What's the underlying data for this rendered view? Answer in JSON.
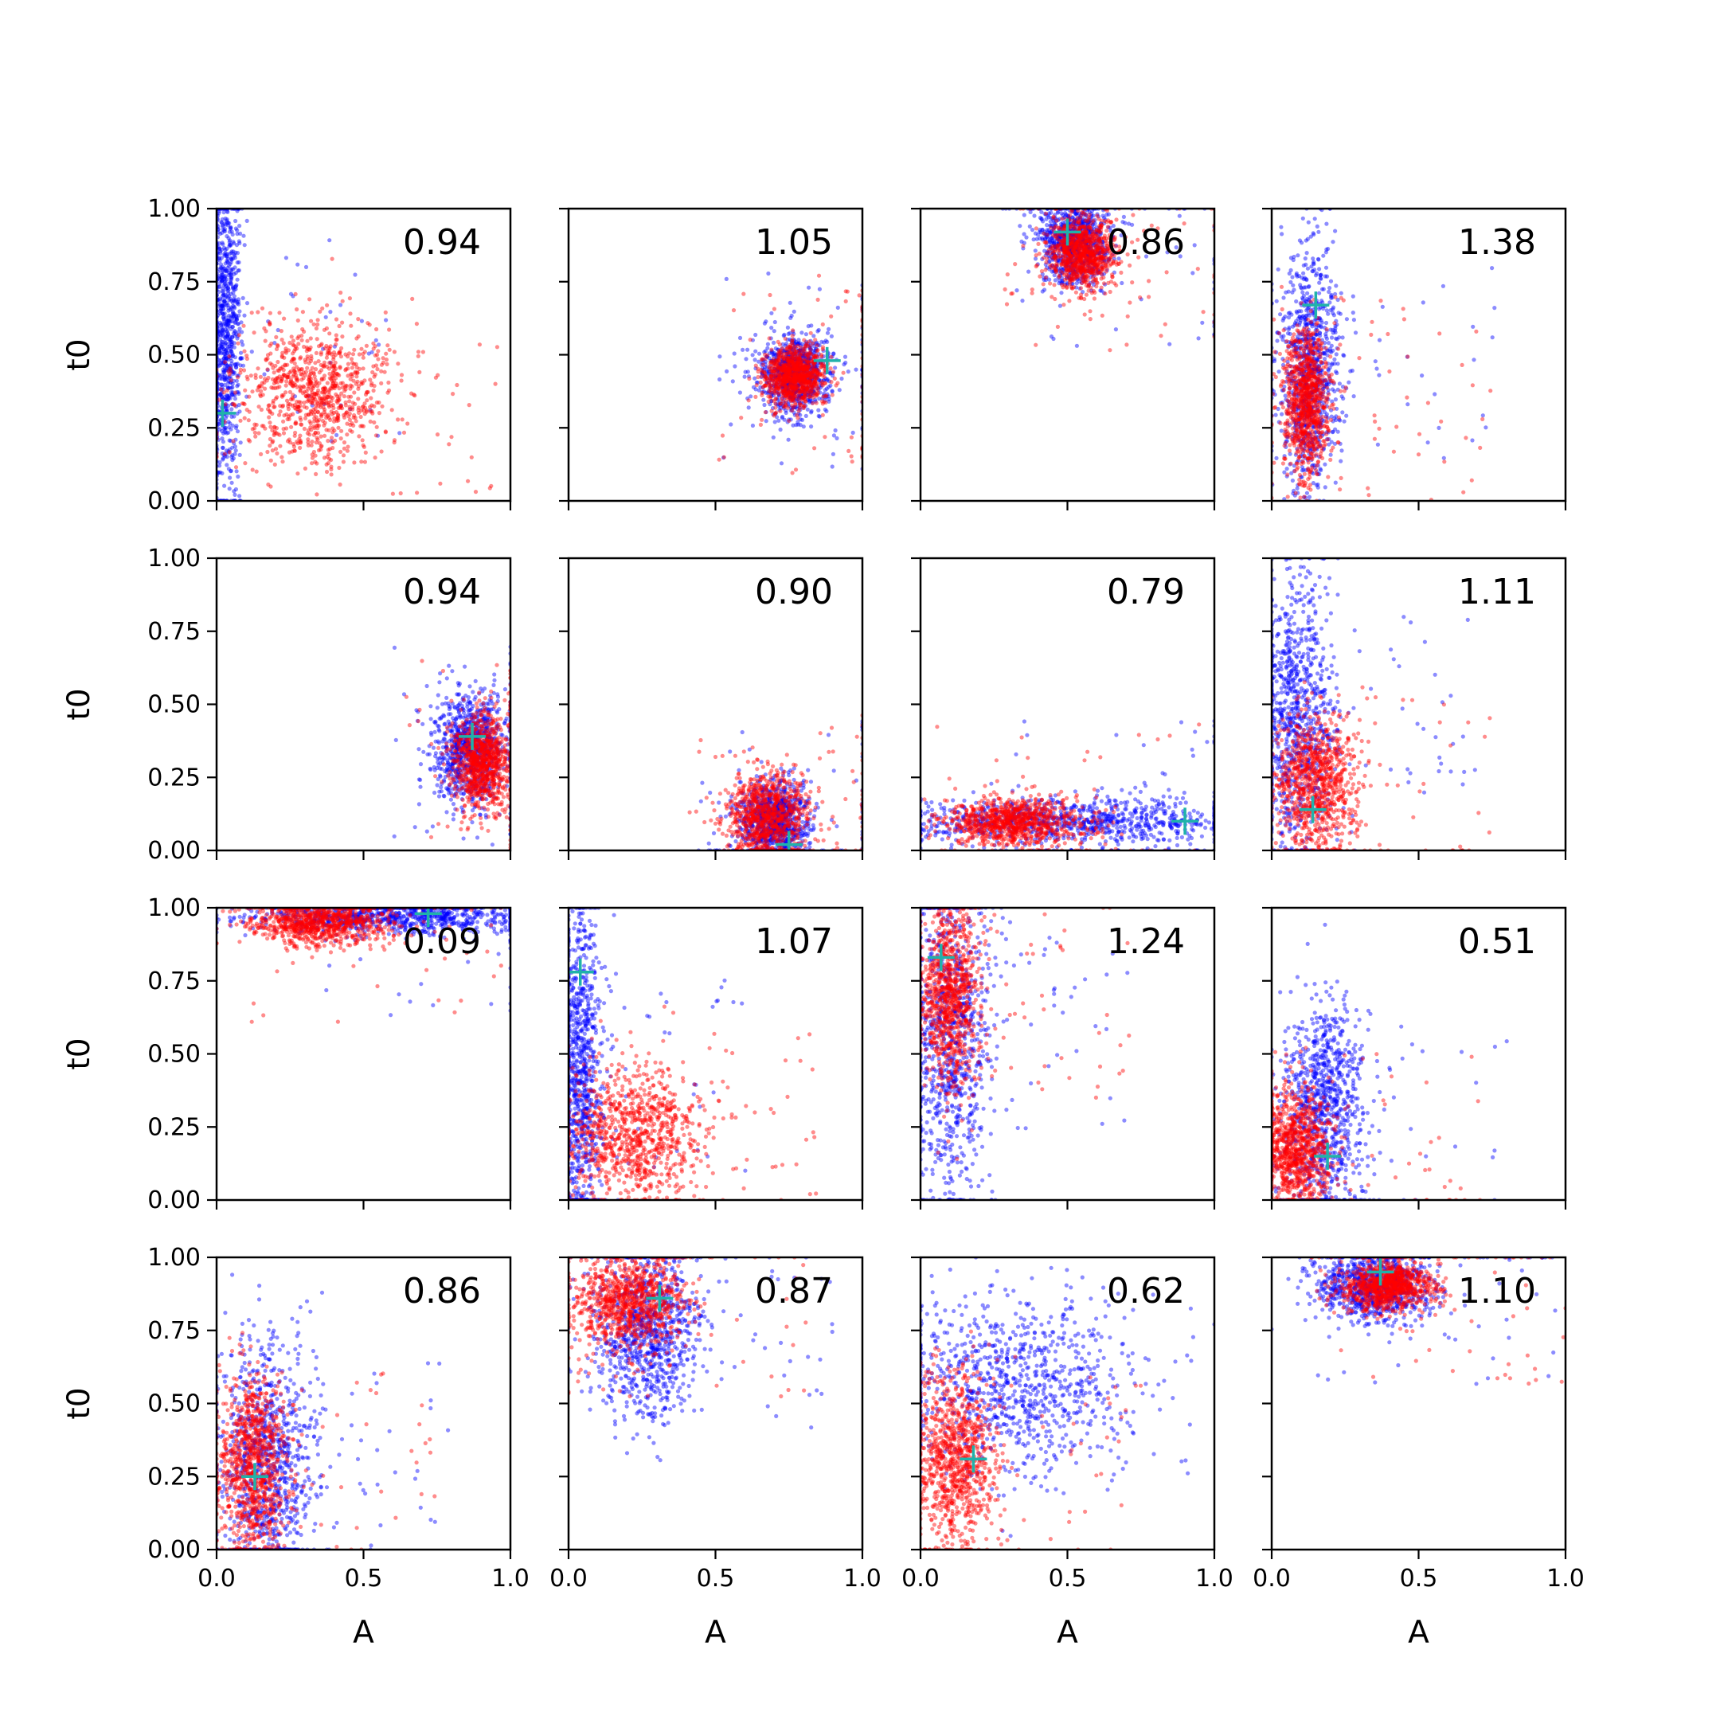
{
  "chart_data": {
    "type": "scatter",
    "layout": "4x4 grid of scatter panels sharing axes",
    "xlabel": "A",
    "ylabel": "t0",
    "xlim": [
      0,
      1
    ],
    "ylim": [
      0,
      1
    ],
    "x_ticks": [
      "0.0",
      "0.5",
      "1.0"
    ],
    "y_ticks": [
      "0.00",
      "0.25",
      "0.50",
      "0.75",
      "1.00"
    ],
    "grid": false,
    "legend": "none",
    "colors": {
      "series_a": "#0000ff",
      "series_b": "#ff0000",
      "marker": "#20b2aa"
    },
    "panels": [
      {
        "label": "0.94",
        "marker": [
          0.02,
          0.3
        ],
        "red": {
          "mean": [
            0.33,
            0.37
          ],
          "sd": [
            0.13,
            0.12
          ]
        },
        "blue": {
          "mean": [
            0.03,
            0.55
          ],
          "sd": [
            0.03,
            0.28
          ]
        }
      },
      {
        "label": "1.05",
        "marker": [
          0.88,
          0.48
        ],
        "red": {
          "mean": [
            0.77,
            0.43
          ],
          "sd": [
            0.05,
            0.05
          ]
        },
        "blue": {
          "mean": [
            0.77,
            0.43
          ],
          "sd": [
            0.06,
            0.07
          ]
        }
      },
      {
        "label": "0.86",
        "marker": [
          0.5,
          0.92
        ],
        "red": {
          "mean": [
            0.55,
            0.85
          ],
          "sd": [
            0.06,
            0.06
          ]
        },
        "blue": {
          "mean": [
            0.52,
            0.88
          ],
          "sd": [
            0.06,
            0.07
          ]
        }
      },
      {
        "label": "1.38",
        "marker": [
          0.15,
          0.67
        ],
        "red": {
          "mean": [
            0.12,
            0.35
          ],
          "sd": [
            0.04,
            0.12
          ]
        },
        "blue": {
          "mean": [
            0.13,
            0.45
          ],
          "sd": [
            0.05,
            0.2
          ]
        }
      },
      {
        "label": "0.94",
        "marker": [
          0.87,
          0.39
        ],
        "red": {
          "mean": [
            0.9,
            0.3
          ],
          "sd": [
            0.05,
            0.08
          ]
        },
        "blue": {
          "mean": [
            0.86,
            0.35
          ],
          "sd": [
            0.06,
            0.09
          ]
        }
      },
      {
        "label": "0.90",
        "marker": [
          0.75,
          0.02
        ],
        "red": {
          "mean": [
            0.68,
            0.12
          ],
          "sd": [
            0.07,
            0.08
          ]
        },
        "blue": {
          "mean": [
            0.7,
            0.1
          ],
          "sd": [
            0.06,
            0.07
          ]
        }
      },
      {
        "label": "0.79",
        "marker": [
          0.9,
          0.1
        ],
        "red": {
          "mean": [
            0.32,
            0.1
          ],
          "sd": [
            0.12,
            0.04
          ]
        },
        "blue": {
          "mean": [
            0.5,
            0.1
          ],
          "sd": [
            0.28,
            0.04
          ]
        }
      },
      {
        "label": "1.11",
        "marker": [
          0.14,
          0.14
        ],
        "red": {
          "mean": [
            0.15,
            0.22
          ],
          "sd": [
            0.07,
            0.12
          ]
        },
        "blue": {
          "mean": [
            0.08,
            0.45
          ],
          "sd": [
            0.07,
            0.25
          ]
        }
      },
      {
        "label": "0.09",
        "marker": [
          0.72,
          0.98
        ],
        "red": {
          "mean": [
            0.35,
            0.95
          ],
          "sd": [
            0.12,
            0.04
          ]
        },
        "blue": {
          "mean": [
            0.6,
            0.97
          ],
          "sd": [
            0.25,
            0.03
          ]
        }
      },
      {
        "label": "1.07",
        "marker": [
          0.04,
          0.78
        ],
        "red": {
          "mean": [
            0.22,
            0.22
          ],
          "sd": [
            0.12,
            0.12
          ]
        },
        "blue": {
          "mean": [
            0.04,
            0.45
          ],
          "sd": [
            0.04,
            0.28
          ]
        }
      },
      {
        "label": "1.24",
        "marker": [
          0.07,
          0.83
        ],
        "red": {
          "mean": [
            0.1,
            0.7
          ],
          "sd": [
            0.05,
            0.15
          ]
        },
        "blue": {
          "mean": [
            0.1,
            0.55
          ],
          "sd": [
            0.07,
            0.3
          ]
        }
      },
      {
        "label": "0.51",
        "marker": [
          0.19,
          0.15
        ],
        "red": {
          "mean": [
            0.08,
            0.18
          ],
          "sd": [
            0.06,
            0.1
          ]
        },
        "blue": {
          "mean": [
            0.18,
            0.3
          ],
          "sd": [
            0.07,
            0.2
          ]
        }
      },
      {
        "label": "0.86",
        "marker": [
          0.13,
          0.25
        ],
        "red": {
          "mean": [
            0.12,
            0.3
          ],
          "sd": [
            0.06,
            0.15
          ]
        },
        "blue": {
          "mean": [
            0.17,
            0.3
          ],
          "sd": [
            0.08,
            0.22
          ]
        }
      },
      {
        "label": "0.87",
        "marker": [
          0.31,
          0.86
        ],
        "red": {
          "mean": [
            0.2,
            0.85
          ],
          "sd": [
            0.1,
            0.08
          ]
        },
        "blue": {
          "mean": [
            0.27,
            0.75
          ],
          "sd": [
            0.09,
            0.15
          ]
        }
      },
      {
        "label": "0.62",
        "marker": [
          0.18,
          0.31
        ],
        "red": {
          "mean": [
            0.12,
            0.3
          ],
          "sd": [
            0.07,
            0.15
          ]
        },
        "blue": {
          "mean": [
            0.3,
            0.55
          ],
          "sd": [
            0.2,
            0.15
          ]
        }
      },
      {
        "label": "1.10",
        "marker": [
          0.37,
          0.95
        ],
        "red": {
          "mean": [
            0.4,
            0.9
          ],
          "sd": [
            0.08,
            0.04
          ]
        },
        "blue": {
          "mean": [
            0.35,
            0.9
          ],
          "sd": [
            0.1,
            0.06
          ]
        }
      }
    ]
  }
}
